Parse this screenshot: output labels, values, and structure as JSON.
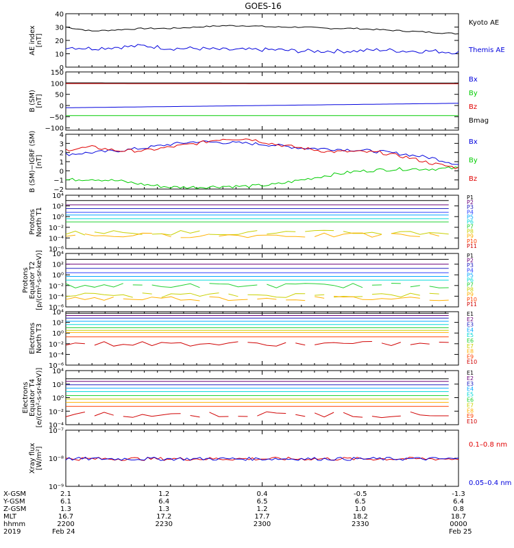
{
  "title": "GOES-16",
  "colors": {
    "black": "#000000",
    "blue": "#0000dd",
    "red": "#e00000",
    "green": "#00cc00",
    "P": [
      "#000000",
      "#6a007a",
      "#2020c0",
      "#2a40ff",
      "#00a8ff",
      "#00d8d8",
      "#20d030",
      "#c8d000",
      "#ffb000",
      "#ff4000",
      "#d00000"
    ],
    "E": [
      "#000000",
      "#6a007a",
      "#2020c0",
      "#00a8ff",
      "#00d8d8",
      "#20d030",
      "#c8d000",
      "#ffb000",
      "#ff4000",
      "#d00000"
    ]
  },
  "chart_data": [
    {
      "type": "line",
      "id": "ae",
      "ylabel": [
        "AE index",
        "[nT]"
      ],
      "ylim": [
        0,
        40
      ],
      "yticks": [
        "0",
        "10",
        "20",
        "30",
        "40"
      ],
      "ytick_values": [
        0,
        10,
        20,
        30,
        40
      ],
      "x": [
        0,
        4,
        8,
        12,
        16,
        20,
        24,
        28,
        32,
        36,
        40,
        44,
        48,
        52,
        56,
        60
      ],
      "series": [
        {
          "name": "Kyoto AE",
          "color": "#000000",
          "values": [
            30,
            27,
            28,
            29,
            29,
            30,
            31,
            31,
            30,
            30,
            29,
            29,
            28,
            27,
            26,
            25
          ]
        },
        {
          "name": "Themis AE",
          "color": "#0000dd",
          "values": [
            15,
            14,
            15,
            16,
            14,
            14,
            13,
            13,
            13,
            12,
            12,
            12,
            13,
            12,
            12,
            11
          ]
        }
      ]
    },
    {
      "type": "line",
      "id": "bsm",
      "ylabel": [
        "B (SM)",
        "[nT]"
      ],
      "ylim": [
        -110,
        150
      ],
      "yticks": [
        "150",
        "100",
        "50",
        "0",
        "−50",
        "−100"
      ],
      "ytick_values": [
        150,
        100,
        50,
        0,
        -50,
        -100
      ],
      "x": [
        0,
        60
      ],
      "series": [
        {
          "name": "Bx",
          "color": "#0000dd",
          "values": [
            -10,
            10
          ]
        },
        {
          "name": "By",
          "color": "#00cc00",
          "values": [
            -45,
            -45
          ]
        },
        {
          "name": "Bz",
          "color": "#e00000",
          "values": [
            98,
            97
          ]
        },
        {
          "name": "Bmag",
          "color": "#000000",
          "values": [
            101,
            100
          ]
        }
      ]
    },
    {
      "type": "line",
      "id": "bigrf",
      "ylabel": [
        "B (SM)−IGRF (SM)",
        "[nT]"
      ],
      "ylim": [
        -2,
        4
      ],
      "yticks": [
        "4",
        "3",
        "2",
        "1",
        "0",
        "−1",
        "−2"
      ],
      "ytick_values": [
        4,
        3,
        2,
        1,
        0,
        -1,
        -2
      ],
      "x": [
        0,
        4,
        8,
        12,
        16,
        20,
        24,
        28,
        32,
        36,
        40,
        44,
        48,
        52,
        56,
        60
      ],
      "series": [
        {
          "name": "Bx",
          "color": "#0000dd",
          "values": [
            1.8,
            2.0,
            2.2,
            2.5,
            2.9,
            3.2,
            3.1,
            3.0,
            2.8,
            2.5,
            2.4,
            2.3,
            2.1,
            1.8,
            1.4,
            0.7
          ]
        },
        {
          "name": "By",
          "color": "#00cc00",
          "values": [
            -1.0,
            -0.9,
            -1.1,
            -1.5,
            -1.8,
            -1.8,
            -1.7,
            -1.7,
            -1.5,
            -1.0,
            -0.5,
            -0.1,
            0.1,
            0.2,
            0.2,
            0.3
          ]
        },
        {
          "name": "Bz",
          "color": "#e00000",
          "values": [
            2.3,
            2.6,
            2.2,
            2.2,
            2.6,
            3.0,
            3.5,
            3.5,
            2.9,
            2.5,
            2.1,
            2.1,
            2.0,
            1.5,
            0.8,
            0.3
          ]
        }
      ]
    },
    {
      "type": "line",
      "id": "p1",
      "log": true,
      "ylabel": [
        "Protons",
        "North T1"
      ],
      "ylim": [
        -6,
        4
      ],
      "yticks": [
        "10⁴",
        "10²",
        "10⁰",
        "10⁻²",
        "10⁻⁴",
        "10⁻⁶"
      ],
      "ytick_values": [
        4,
        2,
        0,
        -2,
        -4,
        -6
      ],
      "legend": [
        "P1",
        "P2",
        "P3",
        "P4",
        "P5",
        "P6",
        "P7",
        "P8",
        "P9",
        "P10",
        "P11"
      ],
      "series_log": [
        3.0,
        2.2,
        1.5,
        0.8,
        0.3,
        -0.4,
        -1.0,
        -3.0,
        -3.5,
        null,
        null
      ]
    },
    {
      "type": "line",
      "id": "p2",
      "log": true,
      "ylabel": [
        "Protons",
        "Equator T2",
        "[p/(cm²-s-sr-keV)]"
      ],
      "ylim": [
        -6,
        4
      ],
      "yticks": [
        "10⁴",
        "10²",
        "10⁰",
        "10⁻²",
        "10⁻⁴",
        "10⁻⁶"
      ],
      "ytick_values": [
        4,
        2,
        0,
        -2,
        -4,
        -6
      ],
      "legend": [
        "P1",
        "P2",
        "P3",
        "P4",
        "P5",
        "P6",
        "P7",
        "P8",
        "P9",
        "P10",
        "P11"
      ],
      "series_log": [
        2.9,
        2.0,
        1.2,
        0.4,
        -0.3,
        -1.0,
        -2.0,
        -3.8,
        -4.4,
        null,
        null
      ]
    },
    {
      "type": "line",
      "id": "e3",
      "log": true,
      "ylabel": [
        "Electrons",
        "North T3"
      ],
      "ylim": [
        -6,
        4
      ],
      "yticks": [
        "10⁴",
        "10²",
        "10⁰",
        "10⁻²",
        "10⁻⁴",
        "10⁻⁶"
      ],
      "ytick_values": [
        4,
        2,
        0,
        -2,
        -4,
        -6
      ],
      "legend": [
        "E1",
        "E2",
        "E3",
        "E4",
        "E5",
        "E6",
        "E7",
        "E8",
        "E9",
        "E10"
      ],
      "series_log": [
        3.7,
        3.3,
        2.8,
        2.2,
        1.6,
        1.0,
        0.5,
        0.1,
        -0.7,
        -2.0
      ]
    },
    {
      "type": "line",
      "id": "e4",
      "log": true,
      "ylabel": [
        "Electrons",
        "Equator T4",
        "[e/(cm²-s-sr-keV)]"
      ],
      "ylim": [
        -4,
        4
      ],
      "yticks": [
        "10⁴",
        "10²",
        "10⁰",
        "10⁻²",
        "10⁻⁴"
      ],
      "ytick_values": [
        4,
        2,
        0,
        -2,
        -4
      ],
      "legend": [
        "E1",
        "E2",
        "E3",
        "E4",
        "E5",
        "E6",
        "E7",
        "E8",
        "E9",
        "E10"
      ],
      "series_log": [
        2.8,
        2.4,
        1.9,
        1.4,
        0.9,
        0.3,
        -0.2,
        -0.7,
        -1.3,
        -2.5
      ]
    },
    {
      "type": "line",
      "id": "xray",
      "log": true,
      "ylabel": [
        "Xray flux",
        "[W/m²]"
      ],
      "ylim": [
        -9,
        -7
      ],
      "yticks": [
        "10⁻⁷",
        "10⁻⁸",
        "10⁻⁹"
      ],
      "ytick_values": [
        -7,
        -8,
        -9
      ],
      "series": [
        {
          "name": "0.1–0.8 nm",
          "color": "#e00000"
        },
        {
          "name": "0.05–0.4 nm",
          "color": "#0000dd"
        }
      ]
    }
  ],
  "xaxis": {
    "row_labels": [
      "X-GSM",
      "Y-GSM",
      "Z-GSM",
      "MLT",
      "hhmm",
      "2019"
    ],
    "ticks": [
      [
        "2.1",
        "6.1",
        "1.3",
        "16.7",
        "2200",
        "Feb 24"
      ],
      [
        "1.2",
        "6.4",
        "1.3",
        "17.2",
        "2230",
        ""
      ],
      [
        "0.4",
        "6.5",
        "1.2",
        "17.7",
        "2300",
        ""
      ],
      [
        "-0.5",
        "6.5",
        "1.0",
        "18.2",
        "2330",
        ""
      ],
      [
        "-1.3",
        "6.4",
        "0.8",
        "18.7",
        "0000",
        "Feb 25"
      ]
    ]
  }
}
